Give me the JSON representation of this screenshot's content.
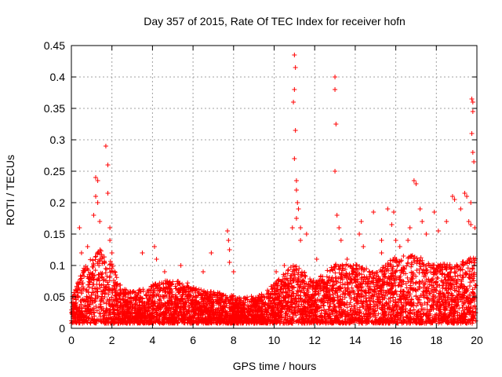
{
  "chart_data": {
    "type": "scatter",
    "title": "Day 357 of 2015, Rate Of TEC Index for receiver hofn",
    "xlabel": "GPS time / hours",
    "ylabel": "ROTI / TECUs",
    "xlim": [
      0,
      20
    ],
    "ylim": [
      0,
      0.45
    ],
    "x_ticks": [
      0,
      2,
      4,
      6,
      8,
      10,
      12,
      14,
      16,
      18,
      20
    ],
    "x_tick_labels": [
      "0",
      "2",
      "4",
      "6",
      "8",
      "10",
      "12",
      "14",
      "16",
      "18",
      "20"
    ],
    "y_ticks": [
      0,
      0.05,
      0.1,
      0.15,
      0.2,
      0.25,
      0.3,
      0.35,
      0.4,
      0.45
    ],
    "y_tick_labels": [
      "0",
      "0.05",
      "0.1",
      "0.15",
      "0.2",
      "0.25",
      "0.3",
      "0.35",
      "0.4",
      "0.45"
    ],
    "grid": true,
    "marker": "+",
    "marker_color": "#ff0000",
    "background_band": {
      "description": "dense cloud of ROTI samples across the whole time range",
      "profile": [
        [
          0.0,
          0.03
        ],
        [
          0.5,
          0.06
        ],
        [
          1.0,
          0.08
        ],
        [
          1.5,
          0.09
        ],
        [
          2.0,
          0.07
        ],
        [
          2.5,
          0.04
        ],
        [
          3.5,
          0.04
        ],
        [
          4.5,
          0.05
        ],
        [
          5.5,
          0.05
        ],
        [
          6.5,
          0.04
        ],
        [
          7.5,
          0.035
        ],
        [
          8.5,
          0.03
        ],
        [
          9.5,
          0.035
        ],
        [
          10.5,
          0.06
        ],
        [
          11.0,
          0.07
        ],
        [
          12.0,
          0.05
        ],
        [
          13.0,
          0.07
        ],
        [
          14.0,
          0.07
        ],
        [
          15.0,
          0.06
        ],
        [
          16.0,
          0.08
        ],
        [
          17.0,
          0.08
        ],
        [
          18.0,
          0.07
        ],
        [
          19.0,
          0.07
        ],
        [
          19.9,
          0.08
        ]
      ]
    },
    "notable_points": [
      [
        0.4,
        0.16
      ],
      [
        0.5,
        0.12
      ],
      [
        0.8,
        0.13
      ],
      [
        1.1,
        0.18
      ],
      [
        1.2,
        0.21
      ],
      [
        1.2,
        0.24
      ],
      [
        1.3,
        0.235
      ],
      [
        1.3,
        0.2
      ],
      [
        1.4,
        0.17
      ],
      [
        1.7,
        0.29
      ],
      [
        1.8,
        0.26
      ],
      [
        1.8,
        0.215
      ],
      [
        1.9,
        0.16
      ],
      [
        1.9,
        0.14
      ],
      [
        2.0,
        0.12
      ],
      [
        3.5,
        0.12
      ],
      [
        4.1,
        0.13
      ],
      [
        4.2,
        0.11
      ],
      [
        4.6,
        0.09
      ],
      [
        5.4,
        0.1
      ],
      [
        6.5,
        0.09
      ],
      [
        6.9,
        0.12
      ],
      [
        7.7,
        0.155
      ],
      [
        7.75,
        0.14
      ],
      [
        7.8,
        0.125
      ],
      [
        7.8,
        0.105
      ],
      [
        8.0,
        0.09
      ],
      [
        10.1,
        0.09
      ],
      [
        10.5,
        0.1
      ],
      [
        10.9,
        0.16
      ],
      [
        11.0,
        0.435
      ],
      [
        11.05,
        0.415
      ],
      [
        11.0,
        0.38
      ],
      [
        10.95,
        0.36
      ],
      [
        11.05,
        0.315
      ],
      [
        11.0,
        0.27
      ],
      [
        11.1,
        0.235
      ],
      [
        11.1,
        0.22
      ],
      [
        11.15,
        0.2
      ],
      [
        11.2,
        0.19
      ],
      [
        11.1,
        0.175
      ],
      [
        11.3,
        0.16
      ],
      [
        11.3,
        0.14
      ],
      [
        11.6,
        0.15
      ],
      [
        12.1,
        0.11
      ],
      [
        13.0,
        0.4
      ],
      [
        13.0,
        0.38
      ],
      [
        13.05,
        0.325
      ],
      [
        13.0,
        0.25
      ],
      [
        13.1,
        0.18
      ],
      [
        13.2,
        0.16
      ],
      [
        13.3,
        0.14
      ],
      [
        13.6,
        0.11
      ],
      [
        14.2,
        0.15
      ],
      [
        14.3,
        0.17
      ],
      [
        14.4,
        0.13
      ],
      [
        14.9,
        0.185
      ],
      [
        15.3,
        0.12
      ],
      [
        15.3,
        0.14
      ],
      [
        15.6,
        0.19
      ],
      [
        15.8,
        0.165
      ],
      [
        15.9,
        0.185
      ],
      [
        16.0,
        0.14
      ],
      [
        16.2,
        0.13
      ],
      [
        16.6,
        0.14
      ],
      [
        16.7,
        0.16
      ],
      [
        16.9,
        0.235
      ],
      [
        17.0,
        0.23
      ],
      [
        17.2,
        0.19
      ],
      [
        17.3,
        0.17
      ],
      [
        17.5,
        0.15
      ],
      [
        17.9,
        0.185
      ],
      [
        18.1,
        0.155
      ],
      [
        18.5,
        0.17
      ],
      [
        18.8,
        0.21
      ],
      [
        18.9,
        0.205
      ],
      [
        19.2,
        0.19
      ],
      [
        19.4,
        0.215
      ],
      [
        19.5,
        0.21
      ],
      [
        19.6,
        0.17
      ],
      [
        19.7,
        0.165
      ],
      [
        19.75,
        0.365
      ],
      [
        19.8,
        0.36
      ],
      [
        19.8,
        0.345
      ],
      [
        19.75,
        0.31
      ],
      [
        19.8,
        0.28
      ],
      [
        19.85,
        0.265
      ],
      [
        19.7,
        0.2
      ],
      [
        19.9,
        0.16
      ]
    ]
  }
}
